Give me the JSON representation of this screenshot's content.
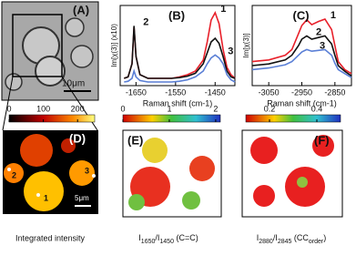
{
  "chart_data": [
    {
      "type": "line",
      "title": "(B)",
      "x_label": "Raman shift (cm-1)",
      "y_label": "Im[χ(3)] (x10)",
      "x": [
        -1680,
        -1670,
        -1660,
        -1655,
        -1650,
        -1640,
        -1620,
        -1600,
        -1580,
        -1560,
        -1540,
        -1520,
        -1500,
        -1480,
        -1470,
        -1460,
        -1450,
        -1440,
        -1430,
        -1420,
        -1410,
        -1400
      ],
      "series": [
        {
          "name": "1",
          "color": "#e8202a",
          "values": [
            0.1,
            0.12,
            0.3,
            0.8,
            0.4,
            0.15,
            0.1,
            0.1,
            0.1,
            0.1,
            0.12,
            0.15,
            0.2,
            0.35,
            0.6,
            0.9,
            1.0,
            0.85,
            0.5,
            0.25,
            0.15,
            0.1
          ]
        },
        {
          "name": "2",
          "color": "#111111",
          "values": [
            0.1,
            0.12,
            0.3,
            0.82,
            0.4,
            0.15,
            0.1,
            0.1,
            0.1,
            0.1,
            0.11,
            0.13,
            0.17,
            0.3,
            0.45,
            0.6,
            0.65,
            0.58,
            0.4,
            0.2,
            0.12,
            0.1
          ]
        },
        {
          "name": "3",
          "color": "#5a7fd6",
          "values": [
            0.05,
            0.06,
            0.1,
            0.2,
            0.12,
            0.07,
            0.05,
            0.05,
            0.05,
            0.05,
            0.06,
            0.08,
            0.12,
            0.2,
            0.3,
            0.38,
            0.42,
            0.38,
            0.3,
            0.15,
            0.08,
            0.05
          ]
        }
      ],
      "xlim": [
        -1690,
        -1400
      ],
      "ylim": [
        0,
        1.1
      ],
      "xticks": [
        -1650,
        -1550,
        -1450
      ]
    },
    {
      "type": "line",
      "title": "(C)",
      "x_label": "Raman shift (cm-1)",
      "y_label": "Im[χ(3)]",
      "x": [
        -3100,
        -3050,
        -3000,
        -2980,
        -2960,
        -2950,
        -2935,
        -2920,
        -2900,
        -2880,
        -2860,
        -2850,
        -2840,
        -2820,
        -2800
      ],
      "series": [
        {
          "name": "1",
          "color": "#e8202a",
          "values": [
            0.3,
            0.32,
            0.38,
            0.45,
            0.65,
            0.75,
            0.82,
            0.76,
            0.8,
            0.83,
            0.7,
            0.5,
            0.3,
            0.2,
            0.15
          ]
        },
        {
          "name": "2",
          "color": "#111111",
          "values": [
            0.25,
            0.27,
            0.32,
            0.38,
            0.5,
            0.58,
            0.62,
            0.58,
            0.6,
            0.62,
            0.52,
            0.38,
            0.25,
            0.18,
            0.12
          ]
        },
        {
          "name": "3",
          "color": "#5a7fd6",
          "values": [
            0.2,
            0.22,
            0.26,
            0.3,
            0.38,
            0.42,
            0.45,
            0.43,
            0.44,
            0.45,
            0.38,
            0.28,
            0.2,
            0.15,
            0.1
          ]
        }
      ],
      "xlim": [
        -3100,
        -2800
      ],
      "ylim": [
        0,
        1
      ],
      "xticks": [
        -3050,
        -2950,
        -2850
      ]
    }
  ],
  "panels": {
    "A": {
      "label": "(A)",
      "scale": "10μm"
    },
    "D": {
      "label": "(D)",
      "scale": "5μm",
      "points": [
        "1",
        "2",
        "3"
      ],
      "caption": "Integrated intensity",
      "colorbar": {
        "range": [
          0,
          250
        ],
        "ticks": [
          0,
          100,
          200
        ]
      }
    },
    "E": {
      "label": "(E)",
      "caption": [
        "I",
        "1650",
        "/I",
        "1450",
        " (C=C)"
      ],
      "colorbar": {
        "range": [
          0,
          2.1
        ],
        "ticks": [
          0,
          1,
          2
        ]
      }
    },
    "F": {
      "label": "(F)",
      "caption": [
        "I",
        "2880",
        "/I",
        "2845",
        " (CC",
        "order",
        ")"
      ],
      "colorbar": {
        "range": [
          0.1,
          0.5
        ],
        "ticks": [
          0.2,
          0.4
        ]
      }
    }
  }
}
